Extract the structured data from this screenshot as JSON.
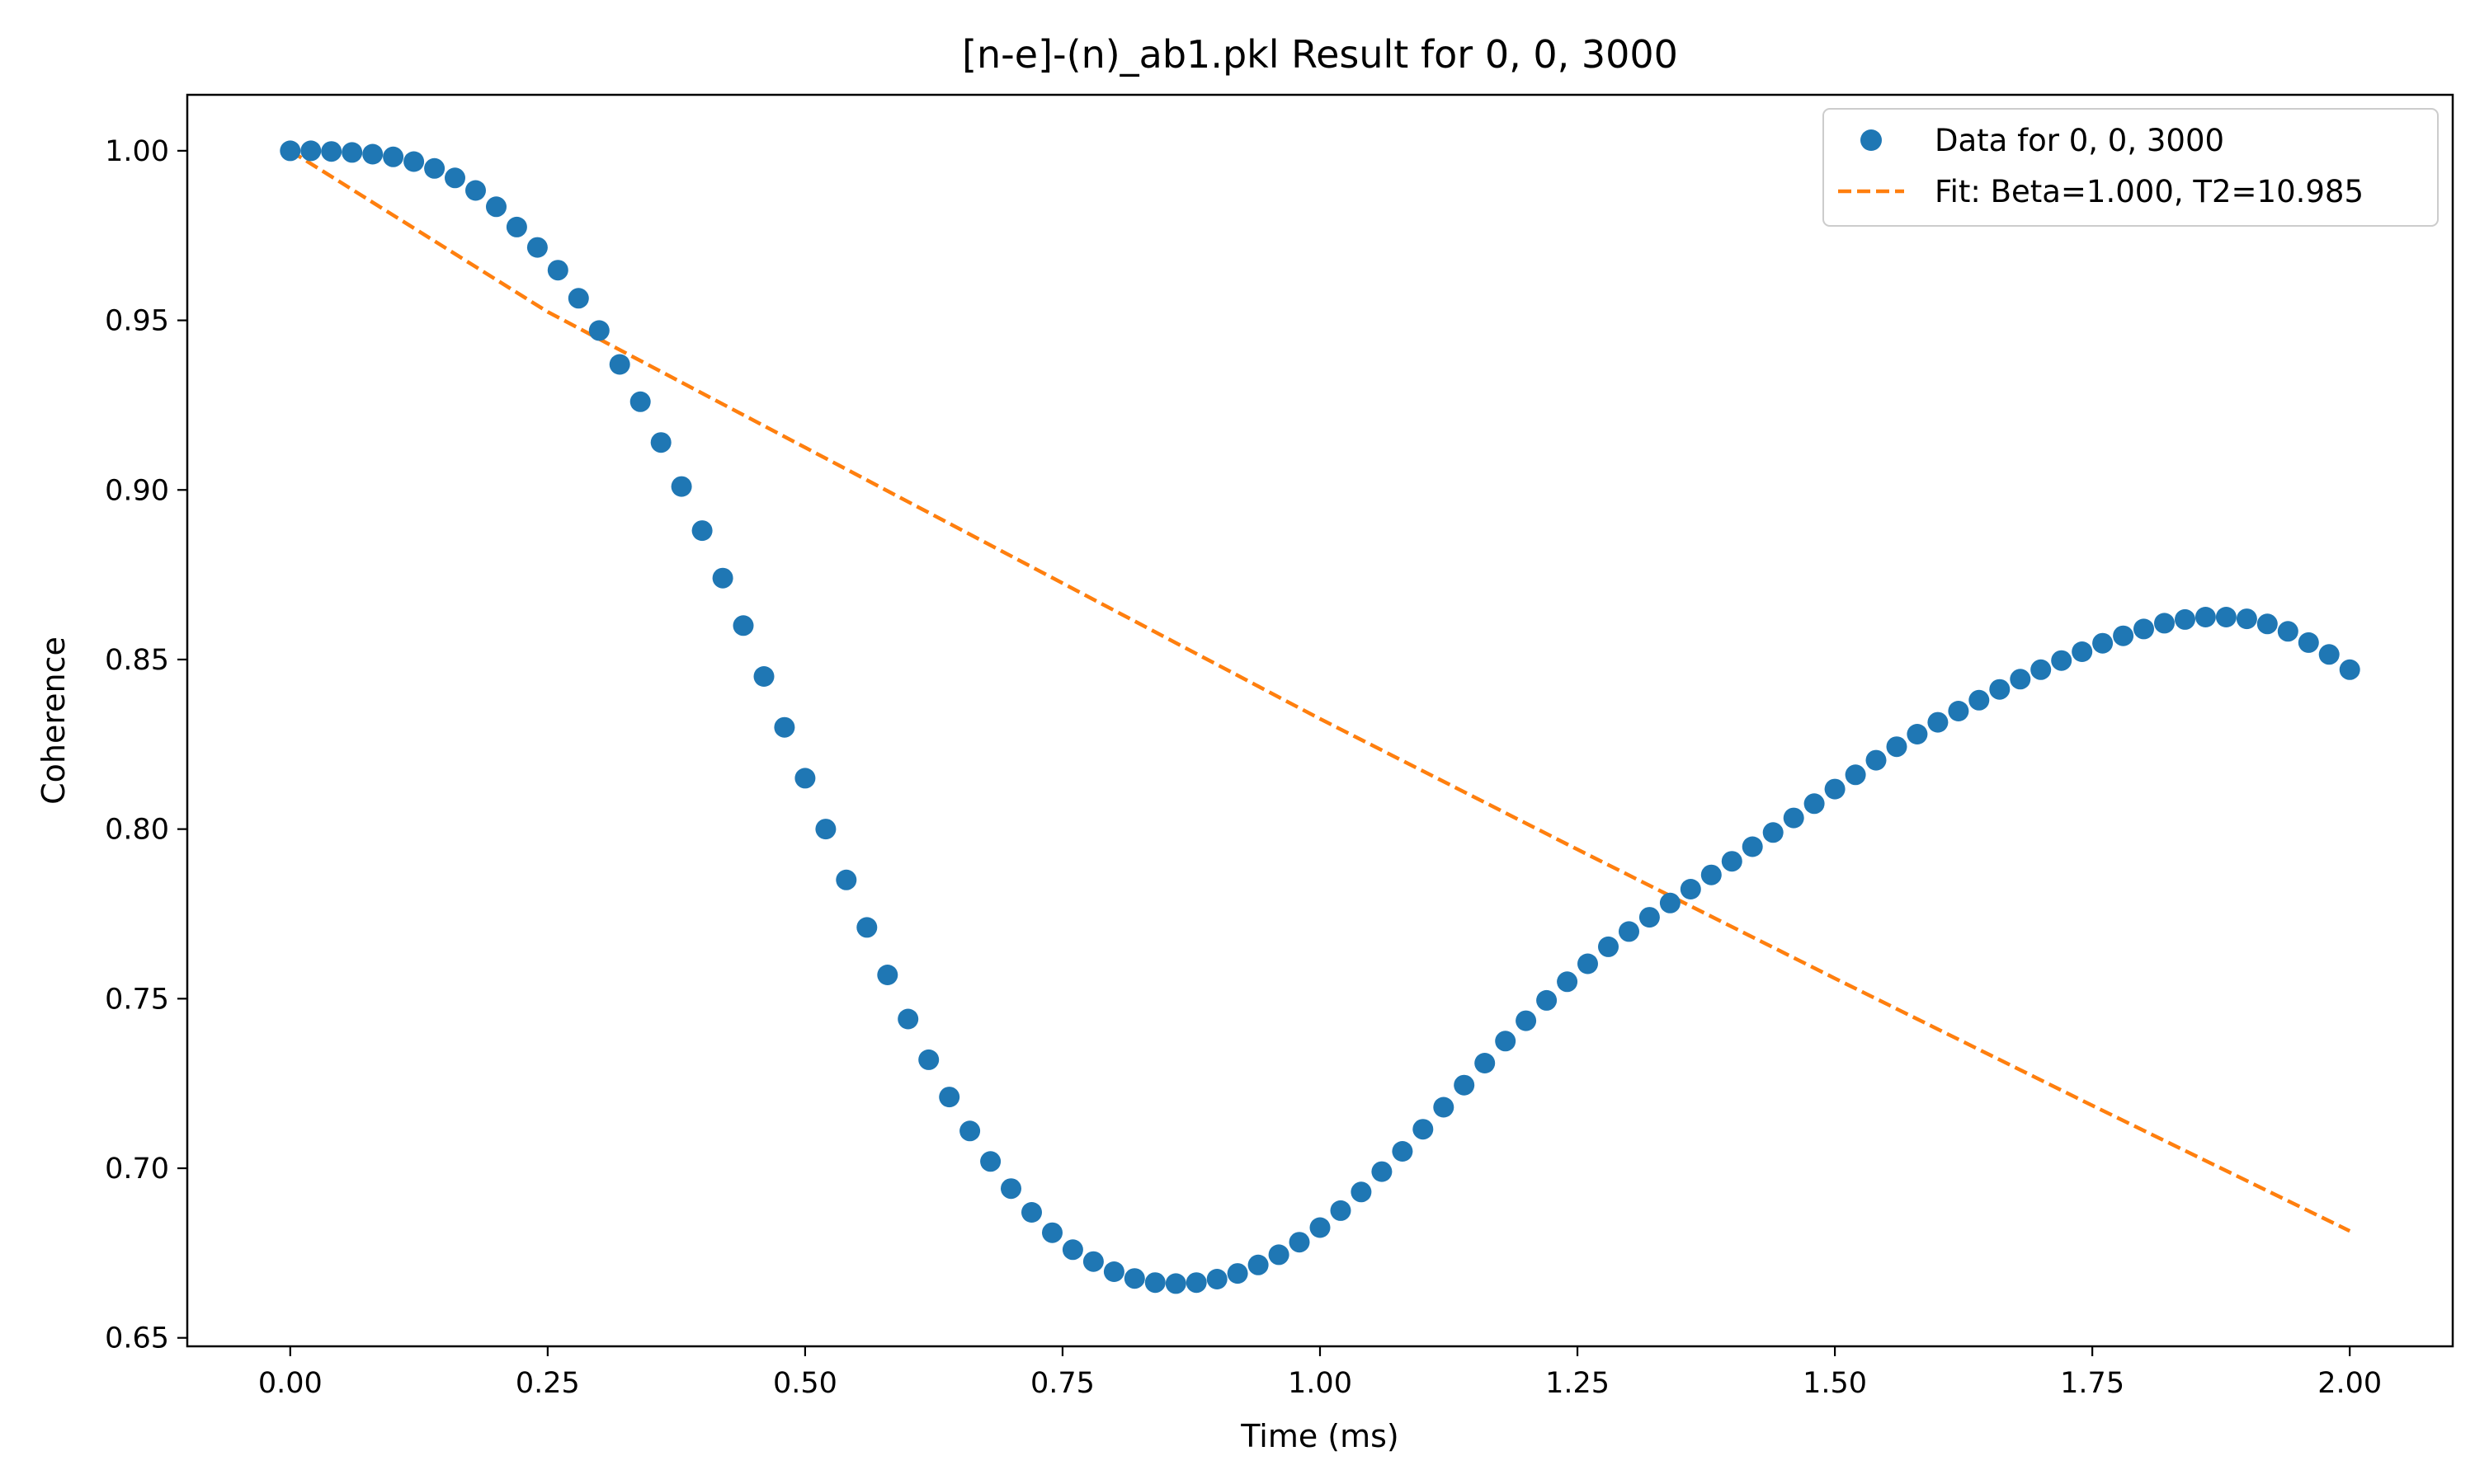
{
  "chart_data": {
    "type": "scatter",
    "title": "[n-e]-(n)_ab1.pkl Result for 0, 0, 3000",
    "xlabel": "Time (ms)",
    "ylabel": "Coherence",
    "xlim": [
      -0.1,
      2.1
    ],
    "ylim": [
      0.6475,
      1.0165
    ],
    "xticks": [
      0.0,
      0.25,
      0.5,
      0.75,
      1.0,
      1.25,
      1.5,
      1.75,
      2.0
    ],
    "xtick_labels": [
      "0.00",
      "0.25",
      "0.50",
      "0.75",
      "1.00",
      "1.25",
      "1.50",
      "1.75",
      "2.00"
    ],
    "yticks": [
      0.65,
      0.7,
      0.75,
      0.8,
      0.85,
      0.9,
      0.95,
      1.0
    ],
    "ytick_labels": [
      "0.65",
      "0.70",
      "0.75",
      "0.80",
      "0.85",
      "0.90",
      "0.95",
      "1.00"
    ],
    "grid": false,
    "legend_position": "top-right",
    "series": [
      {
        "name": "Data for 0, 0, 3000",
        "kind": "scatter",
        "color": "#1f77b4",
        "x": [
          0.0,
          0.02,
          0.04,
          0.06,
          0.08,
          0.1,
          0.12,
          0.14,
          0.16,
          0.18,
          0.2,
          0.22,
          0.24,
          0.26,
          0.28,
          0.3,
          0.32,
          0.34,
          0.36,
          0.38,
          0.4,
          0.42,
          0.44,
          0.46,
          0.48,
          0.5,
          0.52,
          0.54,
          0.56,
          0.58,
          0.6,
          0.62,
          0.64,
          0.66,
          0.68,
          0.7,
          0.72,
          0.74,
          0.76,
          0.78,
          0.8,
          0.82,
          0.84,
          0.86,
          0.88,
          0.9,
          0.92,
          0.94,
          0.96,
          0.98,
          1.0,
          1.02,
          1.04,
          1.06,
          1.08,
          1.1,
          1.12,
          1.14,
          1.16,
          1.18,
          1.2,
          1.22,
          1.24,
          1.26,
          1.28,
          1.3,
          1.32,
          1.34,
          1.36,
          1.38,
          1.4,
          1.42,
          1.44,
          1.46,
          1.48,
          1.5,
          1.52,
          1.54,
          1.56,
          1.58,
          1.6,
          1.62,
          1.64,
          1.66,
          1.68,
          1.7,
          1.72,
          1.74,
          1.76,
          1.78,
          1.8,
          1.82,
          1.84,
          1.86,
          1.88,
          1.9,
          1.92,
          1.94,
          1.96,
          1.98,
          2.0
        ],
        "y": [
          1.0,
          1.0,
          0.9998,
          0.9995,
          0.999,
          0.9982,
          0.9968,
          0.9948,
          0.992,
          0.9883,
          0.9835,
          0.9775,
          0.9715,
          0.9648,
          0.9565,
          0.947,
          0.937,
          0.926,
          0.914,
          0.901,
          0.888,
          0.874,
          0.86,
          0.845,
          0.83,
          0.815,
          0.8,
          0.785,
          0.771,
          0.757,
          0.744,
          0.732,
          0.721,
          0.711,
          0.702,
          0.694,
          0.687,
          0.681,
          0.676,
          0.6725,
          0.6695,
          0.6675,
          0.6663,
          0.666,
          0.6663,
          0.6673,
          0.669,
          0.6715,
          0.6745,
          0.6782,
          0.6825,
          0.6875,
          0.693,
          0.699,
          0.705,
          0.7115,
          0.718,
          0.7245,
          0.731,
          0.7375,
          0.7435,
          0.7495,
          0.755,
          0.7603,
          0.7653,
          0.7698,
          0.774,
          0.7782,
          0.7823,
          0.7865,
          0.7905,
          0.7948,
          0.799,
          0.8033,
          0.8075,
          0.8118,
          0.816,
          0.8203,
          0.8243,
          0.828,
          0.8315,
          0.8348,
          0.838,
          0.8412,
          0.8442,
          0.847,
          0.8497,
          0.8523,
          0.8548,
          0.857,
          0.859,
          0.8607,
          0.8618,
          0.8625,
          0.8625,
          0.862,
          0.8605,
          0.8583,
          0.855,
          0.8515,
          0.847
        ]
      },
      {
        "name": "Fit: Beta=1.000, T2=10.985",
        "kind": "line",
        "style": "dashed",
        "color": "#ff7f0e",
        "x": [
          0.0,
          0.25,
          0.5,
          0.75,
          1.0,
          1.25,
          1.5,
          1.75,
          2.0
        ],
        "y": [
          1.0,
          0.9525,
          0.9125,
          0.8725,
          0.8325,
          0.794,
          0.756,
          0.7185,
          0.6815
        ]
      }
    ]
  }
}
